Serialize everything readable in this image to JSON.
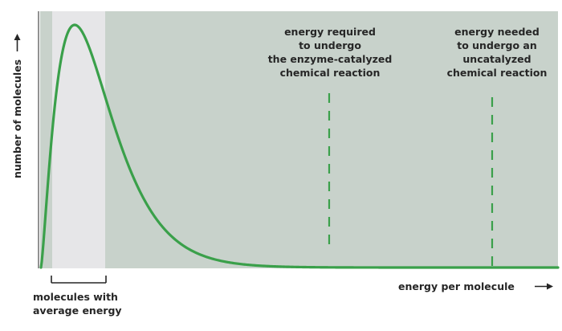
{
  "labels": {
    "y_axis": "number of molecules",
    "x_axis": "energy per molecule",
    "average_bracket": [
      "molecules with",
      "average energy"
    ],
    "enzyme_threshold": [
      "energy required",
      "to undergo",
      "the enzyme-catalyzed",
      "chemical reaction"
    ],
    "uncatalyzed_threshold": [
      "energy needed",
      "to undergo an",
      "uncatalyzed",
      "chemical reaction"
    ]
  },
  "colors": {
    "background_panel": "#c8d2cb",
    "average_band": "#e6e6e8",
    "curve": "#3aa04a",
    "threshold_lines": "#3aa04a",
    "shaded_tail": "#e0351f",
    "axis": "#262626",
    "text": "#262626"
  },
  "icons": {
    "y_axis_arrow": "arrow-up-icon",
    "x_axis_arrow": "arrow-right-icon"
  }
}
